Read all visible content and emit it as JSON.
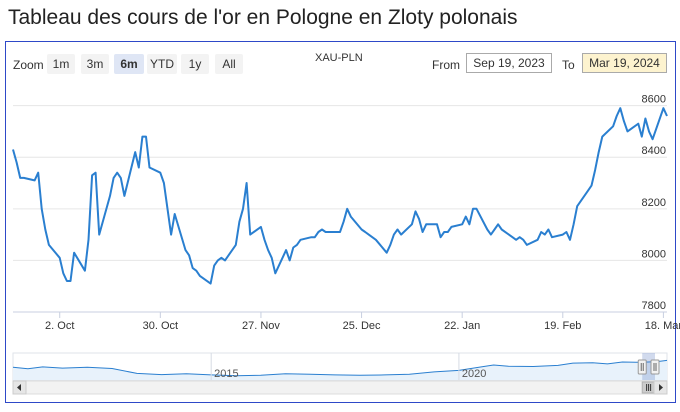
{
  "title": "Tableau des cours de l'or en Pologne en Zloty polonais",
  "toolbar": {
    "zoom_label": "Zoom",
    "buttons": [
      "1m",
      "3m",
      "6m",
      "YTD",
      "1y",
      "All"
    ],
    "active": "6m",
    "symbol": "XAU-PLN",
    "from_label": "From",
    "from_value": "Sep 19, 2023",
    "to_label": "To",
    "to_value": "Mar 19, 2024"
  },
  "colors": {
    "line": "#2a7fd0",
    "frame": "#2e49c8",
    "navigator_fill": "#e8f2fb",
    "handle": "#8fb7e6"
  },
  "chart_data": {
    "type": "line",
    "series": [
      {
        "name": "",
        "points": [
          [
            "2023-09-19",
            8430
          ],
          [
            "2023-09-20",
            8380
          ],
          [
            "2023-09-21",
            8320
          ],
          [
            "2023-09-22",
            8320
          ],
          [
            "2023-09-25",
            8310
          ],
          [
            "2023-09-26",
            8340
          ],
          [
            "2023-09-27",
            8200
          ],
          [
            "2023-09-28",
            8120
          ],
          [
            "2023-09-29",
            8060
          ],
          [
            "2023-10-02",
            8010
          ],
          [
            "2023-10-03",
            7950
          ],
          [
            "2023-10-04",
            7920
          ],
          [
            "2023-10-05",
            7920
          ],
          [
            "2023-10-06",
            8030
          ],
          [
            "2023-10-09",
            7960
          ],
          [
            "2023-10-10",
            8080
          ],
          [
            "2023-10-11",
            8330
          ],
          [
            "2023-10-12",
            8340
          ],
          [
            "2023-10-13",
            8100
          ],
          [
            "2023-10-16",
            8250
          ],
          [
            "2023-10-17",
            8320
          ],
          [
            "2023-10-18",
            8340
          ],
          [
            "2023-10-19",
            8320
          ],
          [
            "2023-10-20",
            8250
          ],
          [
            "2023-10-23",
            8420
          ],
          [
            "2023-10-24",
            8360
          ],
          [
            "2023-10-25",
            8480
          ],
          [
            "2023-10-26",
            8480
          ],
          [
            "2023-10-27",
            8360
          ],
          [
            "2023-10-30",
            8340
          ],
          [
            "2023-10-31",
            8300
          ],
          [
            "2023-11-01",
            8200
          ],
          [
            "2023-11-02",
            8100
          ],
          [
            "2023-11-03",
            8180
          ],
          [
            "2023-11-06",
            8040
          ],
          [
            "2023-11-07",
            8020
          ],
          [
            "2023-11-08",
            7970
          ],
          [
            "2023-11-09",
            7960
          ],
          [
            "2023-11-10",
            7940
          ],
          [
            "2023-11-13",
            7910
          ],
          [
            "2023-11-14",
            7980
          ],
          [
            "2023-11-15",
            8000
          ],
          [
            "2023-11-16",
            8010
          ],
          [
            "2023-11-17",
            8000
          ],
          [
            "2023-11-20",
            8060
          ],
          [
            "2023-11-21",
            8150
          ],
          [
            "2023-11-22",
            8200
          ],
          [
            "2023-11-23",
            8300
          ],
          [
            "2023-11-24",
            8100
          ],
          [
            "2023-11-27",
            8130
          ],
          [
            "2023-11-28",
            8080
          ],
          [
            "2023-11-29",
            8040
          ],
          [
            "2023-11-30",
            8010
          ],
          [
            "2023-12-01",
            7950
          ],
          [
            "2023-12-04",
            8040
          ],
          [
            "2023-12-05",
            8000
          ],
          [
            "2023-12-06",
            8050
          ],
          [
            "2023-12-07",
            8060
          ],
          [
            "2023-12-08",
            8080
          ],
          [
            "2023-12-11",
            8090
          ],
          [
            "2023-12-12",
            8090
          ],
          [
            "2023-12-13",
            8110
          ],
          [
            "2023-12-14",
            8120
          ],
          [
            "2023-12-15",
            8110
          ],
          [
            "2023-12-18",
            8110
          ],
          [
            "2023-12-19",
            8110
          ],
          [
            "2023-12-20",
            8150
          ],
          [
            "2023-12-21",
            8200
          ],
          [
            "2023-12-22",
            8170
          ],
          [
            "2023-12-25",
            8120
          ],
          [
            "2023-12-26",
            8110
          ],
          [
            "2023-12-27",
            8100
          ],
          [
            "2023-12-28",
            8090
          ],
          [
            "2023-12-29",
            8080
          ],
          [
            "2024-01-01",
            8030
          ],
          [
            "2024-01-02",
            8060
          ],
          [
            "2024-01-03",
            8100
          ],
          [
            "2024-01-04",
            8120
          ],
          [
            "2024-01-05",
            8100
          ],
          [
            "2024-01-08",
            8140
          ],
          [
            "2024-01-09",
            8190
          ],
          [
            "2024-01-10",
            8160
          ],
          [
            "2024-01-11",
            8110
          ],
          [
            "2024-01-12",
            8140
          ],
          [
            "2024-01-15",
            8140
          ],
          [
            "2024-01-16",
            8090
          ],
          [
            "2024-01-17",
            8110
          ],
          [
            "2024-01-18",
            8110
          ],
          [
            "2024-01-19",
            8130
          ],
          [
            "2024-01-22",
            8140
          ],
          [
            "2024-01-23",
            8170
          ],
          [
            "2024-01-24",
            8140
          ],
          [
            "2024-01-25",
            8200
          ],
          [
            "2024-01-26",
            8200
          ],
          [
            "2024-01-29",
            8120
          ],
          [
            "2024-01-30",
            8100
          ],
          [
            "2024-01-31",
            8120
          ],
          [
            "2024-02-01",
            8140
          ],
          [
            "2024-02-02",
            8120
          ],
          [
            "2024-02-05",
            8090
          ],
          [
            "2024-02-06",
            8080
          ],
          [
            "2024-02-07",
            8090
          ],
          [
            "2024-02-08",
            8080
          ],
          [
            "2024-02-09",
            8060
          ],
          [
            "2024-02-12",
            8080
          ],
          [
            "2024-02-13",
            8110
          ],
          [
            "2024-02-14",
            8100
          ],
          [
            "2024-02-15",
            8120
          ],
          [
            "2024-02-16",
            8090
          ],
          [
            "2024-02-19",
            8100
          ],
          [
            "2024-02-20",
            8110
          ],
          [
            "2024-02-21",
            8080
          ],
          [
            "2024-02-22",
            8140
          ],
          [
            "2024-02-23",
            8210
          ],
          [
            "2024-02-26",
            8270
          ],
          [
            "2024-02-27",
            8290
          ],
          [
            "2024-02-28",
            8350
          ],
          [
            "2024-02-29",
            8420
          ],
          [
            "2024-03-01",
            8480
          ],
          [
            "2024-03-04",
            8520
          ],
          [
            "2024-03-05",
            8560
          ],
          [
            "2024-03-06",
            8590
          ],
          [
            "2024-03-07",
            8540
          ],
          [
            "2024-03-08",
            8500
          ],
          [
            "2024-03-11",
            8530
          ],
          [
            "2024-03-12",
            8480
          ],
          [
            "2024-03-13",
            8550
          ],
          [
            "2024-03-14",
            8500
          ],
          [
            "2024-03-15",
            8470
          ],
          [
            "2024-03-18",
            8590
          ],
          [
            "2024-03-19",
            8560
          ]
        ]
      }
    ],
    "x_range": [
      "2023-09-19",
      "2024-03-19"
    ],
    "ylim": [
      7800,
      8680
    ],
    "y_ticks": [
      7800,
      8000,
      8200,
      8400,
      8600
    ],
    "x_ticks": [
      {
        "date": "2023-10-02",
        "label": "2. Oct"
      },
      {
        "date": "2023-10-30",
        "label": "30. Oct"
      },
      {
        "date": "2023-11-27",
        "label": "27. Nov"
      },
      {
        "date": "2023-12-25",
        "label": "25. Dec"
      },
      {
        "date": "2024-01-22",
        "label": "22. Jan"
      },
      {
        "date": "2024-02-19",
        "label": "19. Feb"
      },
      {
        "date": "2024-03-18",
        "label": "18. Mar"
      }
    ],
    "grid": "horizontal",
    "legend": "none",
    "navigator": {
      "years": [
        "2015",
        "2020"
      ],
      "history": [
        [
          2011,
          6800
        ],
        [
          2011.3,
          6400
        ],
        [
          2011.6,
          6900
        ],
        [
          2012,
          6600
        ],
        [
          2012.5,
          6800
        ],
        [
          2013,
          6500
        ],
        [
          2013.5,
          5200
        ],
        [
          2014,
          4900
        ],
        [
          2014.5,
          5100
        ],
        [
          2015,
          4800
        ],
        [
          2015.5,
          4600
        ],
        [
          2016,
          4700
        ],
        [
          2016.5,
          5100
        ],
        [
          2017,
          5000
        ],
        [
          2017.5,
          4800
        ],
        [
          2018,
          4700
        ],
        [
          2018.5,
          4800
        ],
        [
          2019,
          5000
        ],
        [
          2019.5,
          5600
        ],
        [
          2020,
          6000
        ],
        [
          2020.5,
          7000
        ],
        [
          2020.7,
          7400
        ],
        [
          2021,
          7100
        ],
        [
          2021.5,
          7000
        ],
        [
          2022,
          7300
        ],
        [
          2022.3,
          7900
        ],
        [
          2022.7,
          8000
        ],
        [
          2023,
          7700
        ],
        [
          2023.3,
          8200
        ],
        [
          2023.7,
          8100
        ],
        [
          2024,
          8300
        ],
        [
          2024.2,
          8600
        ]
      ]
    }
  }
}
